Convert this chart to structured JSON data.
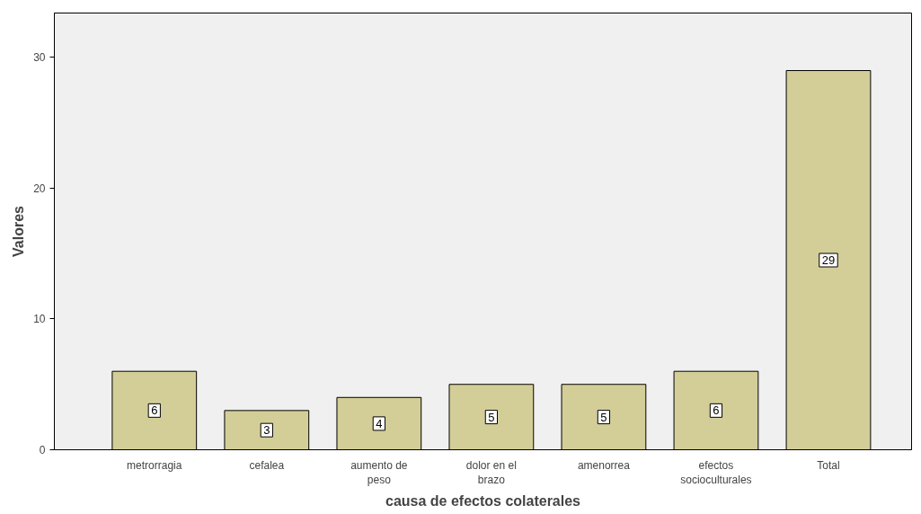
{
  "chart_data": {
    "type": "bar",
    "xlabel": "causa de efectos colaterales",
    "ylabel": "Valores",
    "categories": [
      "metrorragia",
      "cefalea",
      "aumento de peso",
      "dolor en el brazo",
      "amenorrea",
      "efectos socioculturales",
      "Total"
    ],
    "values": [
      6,
      3,
      4,
      5,
      5,
      6,
      29
    ],
    "color": "#d3ce97",
    "ylim": [
      0,
      33.4
    ],
    "yticks": [
      0,
      10,
      20,
      30
    ],
    "grid": false,
    "data_labels": true
  }
}
